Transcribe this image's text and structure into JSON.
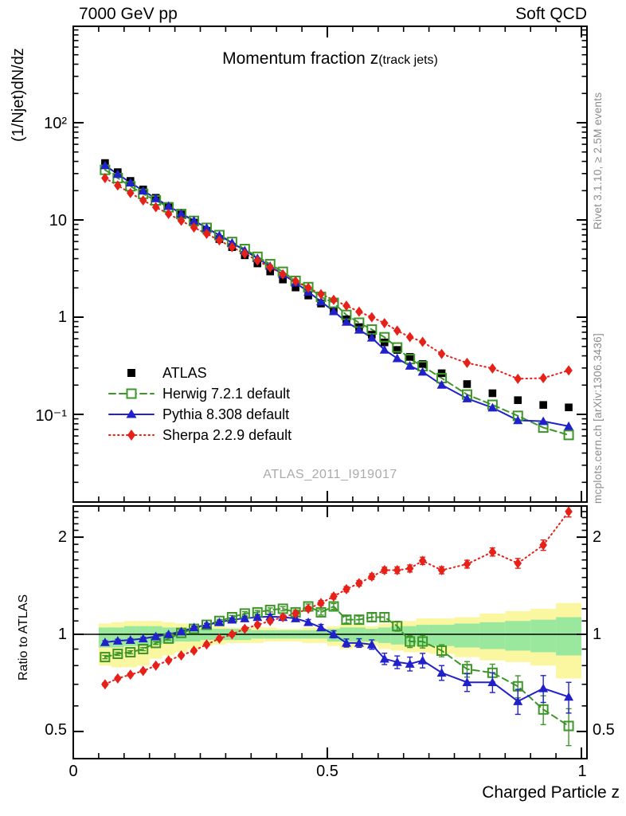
{
  "header": {
    "left": "7000 GeV pp",
    "right": "Soft QCD"
  },
  "title": {
    "main": "Momentum fraction z",
    "paren": "(track jets)"
  },
  "watermark": "ATLAS_2011_I919017",
  "side_notes": {
    "top": "Rivet 3.1.10, ≥ 2.5M events",
    "bottom": "mcplots.cern.ch [arXiv:1306.3436]"
  },
  "axes": {
    "main_y_label": "(1/Njet)dN/dz",
    "main_y_ticks": [
      "10²",
      "10",
      "1",
      "10⁻¹"
    ],
    "ratio_y_label": "Ratio to ATLAS",
    "ratio_y_ticks": [
      "2",
      "1",
      "0.5"
    ],
    "x_ticks": [
      "0",
      "0.5",
      "1"
    ],
    "x_label": "Charged Particle z"
  },
  "legend": [
    {
      "label": "ATLAS",
      "marker": "square-filled",
      "line": "none",
      "color": "#000000"
    },
    {
      "label": "Herwig 7.2.1 default",
      "marker": "square-open",
      "line": "dashed",
      "color": "#3C9628"
    },
    {
      "label": "Pythia 8.308 default",
      "marker": "triangle-filled",
      "line": "solid",
      "color": "#2121CC"
    },
    {
      "label": "Sherpa 2.2.9 default",
      "marker": "diamond-filled",
      "line": "dotted",
      "color": "#E62119"
    }
  ],
  "colors": {
    "band_outer": "#FBF7A0",
    "band_inner": "#99E89E",
    "ref_line": "#000000",
    "frame": "#000000",
    "note_gray": "#8c8c8c",
    "watermark_gray": "#ababab"
  },
  "chart_data": {
    "type": "line",
    "title": "Momentum fraction z (track jets)",
    "xlabel": "Charged Particle z",
    "ylabel_main": "(1/Njet)dN/dz",
    "ylabel_ratio": "Ratio to ATLAS",
    "x_range": [
      0,
      1.011
    ],
    "main_yscale": "log",
    "main_ylim": [
      0.0125,
      980
    ],
    "ratio_yscale": "log",
    "ratio_ylim": [
      0.412,
      2.5
    ],
    "grid": false,
    "legend_position": "middle-left",
    "x": [
      0.0625,
      0.0875,
      0.1125,
      0.1375,
      0.1625,
      0.1875,
      0.2125,
      0.2375,
      0.2625,
      0.2875,
      0.3125,
      0.3375,
      0.3625,
      0.3875,
      0.4125,
      0.4375,
      0.4625,
      0.4875,
      0.5125,
      0.5375,
      0.5625,
      0.5875,
      0.6125,
      0.6375,
      0.6625,
      0.6875,
      0.725,
      0.775,
      0.825,
      0.875,
      0.925,
      0.975
    ],
    "bin_width": [
      0.025,
      0.025,
      0.025,
      0.025,
      0.025,
      0.025,
      0.025,
      0.025,
      0.025,
      0.025,
      0.025,
      0.025,
      0.025,
      0.025,
      0.025,
      0.025,
      0.025,
      0.025,
      0.025,
      0.025,
      0.025,
      0.025,
      0.025,
      0.025,
      0.025,
      0.025,
      0.05,
      0.05,
      0.05,
      0.05,
      0.05,
      0.05
    ],
    "atlas_values": [
      38.5,
      31.0,
      25.2,
      20.6,
      16.9,
      13.9,
      11.4,
      9.4,
      7.75,
      6.35,
      5.25,
      4.33,
      3.57,
      2.95,
      2.44,
      2.02,
      1.67,
      1.38,
      1.15,
      0.95,
      0.79,
      0.66,
      0.55,
      0.46,
      0.39,
      0.33,
      0.265,
      0.205,
      0.165,
      0.14,
      0.125,
      0.118
    ],
    "series": [
      {
        "name": "Herwig 7.2.1 default",
        "ratio": [
          0.85,
          0.87,
          0.88,
          0.9,
          0.94,
          0.97,
          1.01,
          1.04,
          1.07,
          1.1,
          1.13,
          1.16,
          1.17,
          1.19,
          1.2,
          1.17,
          1.22,
          1.17,
          1.22,
          1.11,
          1.11,
          1.13,
          1.13,
          1.06,
          0.95,
          0.95,
          0.89,
          0.78,
          0.76,
          0.69,
          0.585,
          0.52
        ],
        "ratio_err": [
          0.01,
          0.01,
          0.01,
          0.01,
          0.01,
          0.01,
          0.01,
          0.01,
          0.012,
          0.012,
          0.014,
          0.015,
          0.016,
          0.017,
          0.018,
          0.02,
          0.021,
          0.023,
          0.025,
          0.027,
          0.029,
          0.031,
          0.034,
          0.037,
          0.04,
          0.043,
          0.038,
          0.043,
          0.048,
          0.054,
          0.06,
          0.068
        ]
      },
      {
        "name": "Pythia 8.308 default",
        "ratio": [
          0.945,
          0.955,
          0.96,
          0.97,
          0.985,
          1.0,
          1.02,
          1.05,
          1.07,
          1.09,
          1.11,
          1.12,
          1.13,
          1.135,
          1.13,
          1.12,
          1.09,
          1.05,
          1.0,
          0.94,
          0.94,
          0.93,
          0.84,
          0.82,
          0.81,
          0.83,
          0.76,
          0.71,
          0.71,
          0.62,
          0.68,
          0.64
        ],
        "ratio_err": [
          0.01,
          0.01,
          0.01,
          0.01,
          0.01,
          0.01,
          0.01,
          0.01,
          0.012,
          0.012,
          0.014,
          0.015,
          0.016,
          0.017,
          0.018,
          0.02,
          0.021,
          0.023,
          0.025,
          0.027,
          0.029,
          0.031,
          0.034,
          0.037,
          0.04,
          0.043,
          0.04,
          0.045,
          0.05,
          0.055,
          0.065,
          0.07
        ]
      },
      {
        "name": "Sherpa 2.2.9 default",
        "ratio": [
          0.7,
          0.73,
          0.75,
          0.77,
          0.8,
          0.83,
          0.86,
          0.89,
          0.93,
          0.97,
          1.0,
          1.04,
          1.07,
          1.1,
          1.13,
          1.16,
          1.2,
          1.25,
          1.31,
          1.38,
          1.44,
          1.51,
          1.58,
          1.58,
          1.6,
          1.69,
          1.58,
          1.65,
          1.8,
          1.66,
          1.89,
          2.4
        ],
        "ratio_err": [
          0.008,
          0.008,
          0.008,
          0.008,
          0.008,
          0.009,
          0.009,
          0.01,
          0.01,
          0.011,
          0.012,
          0.013,
          0.014,
          0.015,
          0.017,
          0.018,
          0.02,
          0.022,
          0.024,
          0.026,
          0.028,
          0.031,
          0.034,
          0.037,
          0.04,
          0.044,
          0.04,
          0.046,
          0.052,
          0.058,
          0.07,
          0.09
        ]
      }
    ],
    "uncertainty_band": {
      "outer_lo": [
        0.8,
        0.79,
        0.79,
        0.8,
        0.84,
        0.86,
        0.88,
        0.9,
        0.92,
        0.93,
        0.94,
        0.94,
        0.94,
        0.95,
        0.95,
        0.95,
        0.94,
        0.94,
        0.92,
        0.9,
        0.91,
        0.92,
        0.9,
        0.89,
        0.88,
        0.88,
        0.87,
        0.85,
        0.83,
        0.82,
        0.8,
        0.73
      ],
      "outer_hi": [
        1.08,
        1.09,
        1.1,
        1.1,
        1.1,
        1.09,
        1.08,
        1.07,
        1.06,
        1.06,
        1.05,
        1.05,
        1.05,
        1.05,
        1.04,
        1.04,
        1.05,
        1.05,
        1.06,
        1.08,
        1.07,
        1.06,
        1.08,
        1.1,
        1.1,
        1.12,
        1.12,
        1.13,
        1.16,
        1.18,
        1.2,
        1.25
      ],
      "inner_lo": [
        0.91,
        0.91,
        0.92,
        0.92,
        0.93,
        0.94,
        0.95,
        0.95,
        0.96,
        0.96,
        0.96,
        0.96,
        0.97,
        0.97,
        0.97,
        0.97,
        0.97,
        0.97,
        0.95,
        0.95,
        0.95,
        0.95,
        0.94,
        0.93,
        0.93,
        0.92,
        0.92,
        0.91,
        0.9,
        0.89,
        0.88,
        0.86
      ],
      "inner_hi": [
        1.05,
        1.05,
        1.06,
        1.06,
        1.06,
        1.05,
        1.05,
        1.04,
        1.04,
        1.04,
        1.04,
        1.04,
        1.03,
        1.03,
        1.03,
        1.03,
        1.03,
        1.03,
        1.04,
        1.05,
        1.05,
        1.04,
        1.05,
        1.06,
        1.06,
        1.07,
        1.07,
        1.08,
        1.09,
        1.1,
        1.11,
        1.13
      ]
    }
  }
}
